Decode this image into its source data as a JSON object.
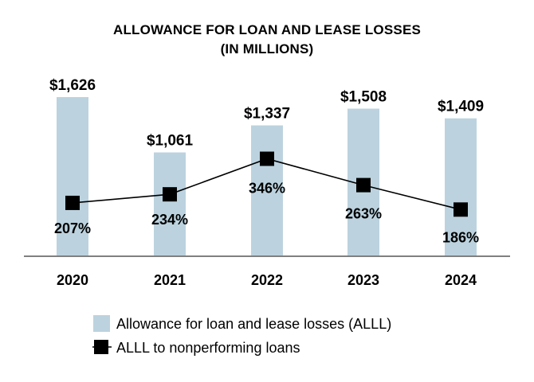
{
  "chart_data": {
    "type": "bar",
    "title": "ALLOWANCE FOR LOAN AND LEASE LOSSES",
    "subtitle": "(IN MILLIONS)",
    "categories": [
      "2020",
      "2021",
      "2022",
      "2023",
      "2024"
    ],
    "series": [
      {
        "name": "Allowance for loan and lease losses (ALLL)",
        "type": "bar",
        "values": [
          1626,
          1061,
          1337,
          1508,
          1409
        ],
        "labels": [
          "$1,626",
          "$1,061",
          "$1,337",
          "$1,508",
          "$1,409"
        ],
        "color": "#bcd3df"
      },
      {
        "name": "ALLL to nonperforming loans",
        "type": "line",
        "values": [
          207,
          234,
          346,
          263,
          186
        ],
        "labels": [
          "207%",
          "234%",
          "346%",
          "263%",
          "186%"
        ],
        "color": "#000000"
      }
    ],
    "legend_position": "bottom",
    "grid": false,
    "axis_color": "#808080"
  }
}
